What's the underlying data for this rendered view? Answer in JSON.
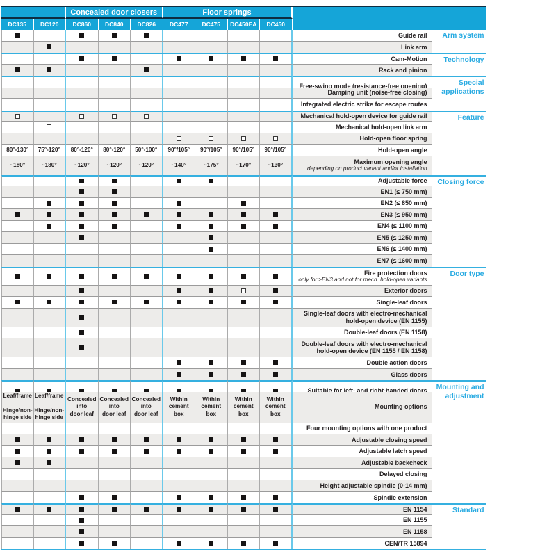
{
  "colors": {
    "header_bg": "#15a5d8",
    "accent_text": "#29abe2",
    "section_line": "#35b0e0",
    "group_line": "#6ac9ea",
    "stripe": "#edecea",
    "navy_line": "#0e2d42",
    "text": "#231f20"
  },
  "marker_codes": {
    "F": "filled-square",
    "O": "hollow-square"
  },
  "header": {
    "groups": [
      {
        "label": "",
        "span": 2
      },
      {
        "label": "Concealed door closers",
        "span": 3
      },
      {
        "label": "Floor springs",
        "span": 4
      }
    ],
    "columns": [
      "DC135",
      "DC120",
      "DC860",
      "DC840",
      "DC826",
      "DC477",
      "DC475",
      "DC450EA",
      "DC450"
    ]
  },
  "sections": [
    {
      "category": "Arm system",
      "rows": [
        {
          "label": "Guide rail",
          "cells": [
            "F",
            "",
            "F",
            "F",
            "F",
            "",
            "",
            "",
            ""
          ]
        },
        {
          "label": "Link arm",
          "cells": [
            "",
            "F",
            "",
            "",
            "",
            "",
            "",
            "",
            ""
          ]
        }
      ]
    },
    {
      "category": "Technology",
      "rows": [
        {
          "label": "Cam-Motion",
          "cells": [
            "",
            "",
            "F",
            "F",
            "",
            "F",
            "F",
            "F",
            "F"
          ]
        },
        {
          "label": "Rack and pinion",
          "cells": [
            "F",
            "F",
            "",
            "",
            "F",
            "",
            "",
            "",
            ""
          ]
        }
      ]
    },
    {
      "category": "Special applications",
      "rows": [
        {
          "label": "Free-swing mode (resistance-free opening)",
          "cells": [
            "",
            "",
            "",
            "",
            "",
            "",
            "",
            "",
            ""
          ]
        },
        {
          "label": "Damping unit (noise-free closing)",
          "cells": [
            "",
            "",
            "",
            "",
            "",
            "",
            "",
            "",
            ""
          ]
        },
        {
          "label": "Integrated electric strike for escape routes",
          "cells": [
            "",
            "",
            "",
            "",
            "",
            "",
            "",
            "",
            ""
          ]
        }
      ]
    },
    {
      "category": "Feature",
      "rows": [
        {
          "label": "Mechanical hold-open device for guide rail",
          "cells": [
            "O",
            "",
            "O",
            "O",
            "O",
            "",
            "",
            "",
            ""
          ]
        },
        {
          "label": "Mechanical hold-open link arm",
          "cells": [
            "",
            "O",
            "",
            "",
            "",
            "",
            "",
            "",
            ""
          ]
        },
        {
          "label": "Hold-open floor spring",
          "cells": [
            "",
            "",
            "",
            "",
            "",
            "O",
            "O",
            "O",
            "O"
          ]
        },
        {
          "label": "Hold-open angle",
          "cells": [
            "80°-130°",
            "75°-120°",
            "80°-120°",
            "80°-120°",
            "50°-100°",
            "90°/105°",
            "90°/105°",
            "90°/105°",
            "90°/105°"
          ]
        },
        {
          "label": "Maximum opening angle",
          "sub": "depending on product variant and/or installation",
          "cells": [
            "~180°",
            "~180°",
            "~120°",
            "~120°",
            "~120°",
            "~140°",
            "~175°",
            "~170°",
            "~130°"
          ]
        }
      ]
    },
    {
      "category": "Closing force",
      "rows": [
        {
          "label": "Adjustable force",
          "cells": [
            "",
            "",
            "F",
            "F",
            "",
            "F",
            "F",
            "",
            ""
          ]
        },
        {
          "label": "EN1 (≤ 750 mm)",
          "cells": [
            "",
            "",
            "F",
            "F",
            "",
            "",
            "",
            "",
            ""
          ]
        },
        {
          "label": "EN2 (≤ 850 mm)",
          "cells": [
            "",
            "F",
            "F",
            "F",
            "",
            "F",
            "",
            "F",
            ""
          ]
        },
        {
          "label": "EN3 (≤ 950 mm)",
          "cells": [
            "F",
            "F",
            "F",
            "F",
            "F",
            "F",
            "F",
            "F",
            "F"
          ]
        },
        {
          "label": "EN4 (≤ 1100 mm)",
          "cells": [
            "",
            "F",
            "F",
            "F",
            "",
            "F",
            "F",
            "F",
            "F"
          ]
        },
        {
          "label": "EN5 (≤ 1250 mm)",
          "cells": [
            "",
            "",
            "F",
            "",
            "",
            "",
            "F",
            "",
            ""
          ]
        },
        {
          "label": "EN6 (≤ 1400 mm)",
          "cells": [
            "",
            "",
            "",
            "",
            "",
            "",
            "F",
            "",
            ""
          ]
        },
        {
          "label": "EN7 (≤ 1600 mm)",
          "cells": [
            "",
            "",
            "",
            "",
            "",
            "",
            "",
            "",
            ""
          ]
        }
      ]
    },
    {
      "category": "Door type",
      "rows": [
        {
          "label": "Fire protection doors",
          "sub": "only for ≥EN3 and not for mech. hold-open variants",
          "cells": [
            "F",
            "F",
            "F",
            "F",
            "F",
            "F",
            "F",
            "F",
            "F"
          ]
        },
        {
          "label": "Exterior doors",
          "cells": [
            "",
            "",
            "F",
            "",
            "",
            "F",
            "F",
            "O",
            "F"
          ]
        },
        {
          "label": "Single-leaf doors",
          "cells": [
            "F",
            "F",
            "F",
            "F",
            "F",
            "F",
            "F",
            "F",
            "F"
          ]
        },
        {
          "label": "Single-leaf doors with electro-mechanical hold-open device (EN 1155)",
          "cells": [
            "",
            "",
            "F",
            "",
            "",
            "",
            "",
            "",
            ""
          ]
        },
        {
          "label": "Double-leaf doors (EN 1158)",
          "cells": [
            "",
            "",
            "F",
            "",
            "",
            "",
            "",
            "",
            ""
          ]
        },
        {
          "label": "Double-leaf doors with electro-mechanical hold-open device (EN 1155 / EN 1158)",
          "cells": [
            "",
            "",
            "F",
            "",
            "",
            "",
            "",
            "",
            ""
          ]
        },
        {
          "label": "Double action doors",
          "cells": [
            "",
            "",
            "",
            "",
            "",
            "F",
            "F",
            "F",
            "F"
          ]
        },
        {
          "label": "Glass doors",
          "cells": [
            "",
            "",
            "",
            "",
            "",
            "F",
            "F",
            "F",
            "F"
          ]
        }
      ]
    },
    {
      "category": "Mounting and adjustment",
      "rows": [
        {
          "label": "Suitable for left- and right-handed doors",
          "cells": [
            "F",
            "F",
            "F",
            "F",
            "F",
            "F",
            "F",
            "F",
            "F"
          ]
        },
        {
          "label": "Mounting options",
          "cells": [
            "Leaf/frame\n\nHinge/non-hinge side",
            "Leaf/frame\n\nHinge/non-hinge side",
            "Concealed\ninto\ndoor leaf",
            "Concealed\ninto\ndoor leaf",
            "Concealed\ninto\ndoor leaf",
            "Within\ncement\nbox",
            "Within\ncement\nbox",
            "Within\ncement\nbox",
            "Within\ncement\nbox"
          ]
        },
        {
          "label": "Four mounting options with one product",
          "cells": [
            "",
            "",
            "",
            "",
            "",
            "",
            "",
            "",
            ""
          ]
        },
        {
          "label": "Adjustable closing speed",
          "cells": [
            "F",
            "F",
            "F",
            "F",
            "F",
            "F",
            "F",
            "F",
            "F"
          ]
        },
        {
          "label": "Adjustable latch speed",
          "cells": [
            "F",
            "F",
            "F",
            "F",
            "F",
            "F",
            "F",
            "F",
            "F"
          ]
        },
        {
          "label": "Adjustable backcheck",
          "cells": [
            "F",
            "F",
            "",
            "",
            "",
            "",
            "",
            "",
            ""
          ]
        },
        {
          "label": "Delayed closing",
          "cells": [
            "",
            "",
            "",
            "",
            "",
            "",
            "",
            "",
            ""
          ]
        },
        {
          "label": "Height adjustable spindle (0-14 mm)",
          "cells": [
            "",
            "",
            "",
            "",
            "",
            "",
            "",
            "",
            ""
          ]
        },
        {
          "label": "Spindle extension",
          "cells": [
            "",
            "",
            "F",
            "F",
            "",
            "F",
            "F",
            "F",
            "F"
          ]
        }
      ]
    },
    {
      "category": "Standard",
      "rows": [
        {
          "label": "EN 1154",
          "cells": [
            "F",
            "F",
            "F",
            "F",
            "F",
            "F",
            "F",
            "F",
            "F"
          ]
        },
        {
          "label": "EN 1155",
          "cells": [
            "",
            "",
            "F",
            "",
            "",
            "",
            "",
            "",
            ""
          ]
        },
        {
          "label": "EN 1158",
          "cells": [
            "",
            "",
            "F",
            "",
            "",
            "",
            "",
            "",
            ""
          ]
        },
        {
          "label": "CEN/TR 15894",
          "cells": [
            "",
            "",
            "F",
            "F",
            "",
            "F",
            "F",
            "F",
            "F"
          ]
        }
      ]
    }
  ]
}
